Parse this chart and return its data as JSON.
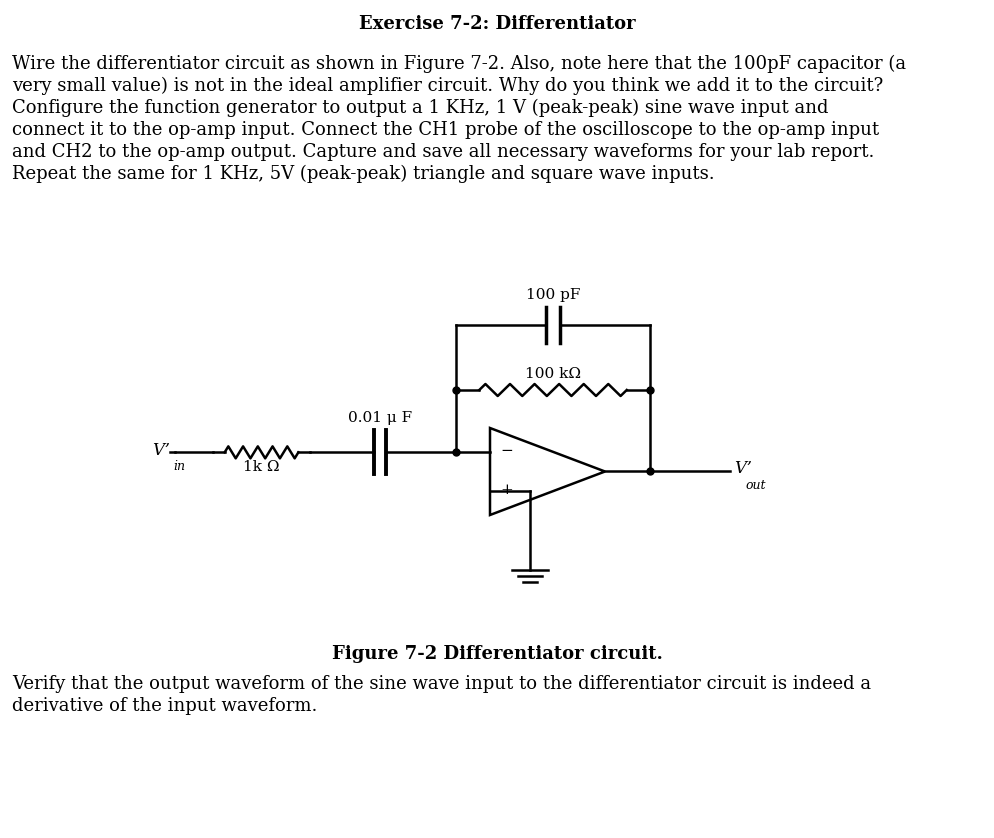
{
  "title": "Exercise 7-2: Differentiator",
  "para1_lines": [
    "Wire the differentiator circuit as shown in Figure 7-2. Also, note here that the 100pF capacitor (a",
    "very small value) is not in the ideal amplifier circuit. Why do you think we add it to the circuit?",
    "Configure the function generator to output a 1 KHz, 1 V (peak-peak) sine wave input and",
    "connect it to the op-amp input. Connect the CH1 probe of the oscilloscope to the op-amp input",
    "and CH2 to the op-amp output. Capture and save all necessary waveforms for your lab report.",
    "Repeat the same for 1 KHz, 5V (peak-peak) triangle and square wave inputs."
  ],
  "figure_caption": "Figure 7-2 Differentiator circuit.",
  "para2_lines": [
    "Verify that the output waveform of the sine wave input to the differentiator circuit is indeed a",
    "derivative of the input waveform."
  ],
  "label_100pF": "100 pF",
  "label_100k": "100 kΩ",
  "label_001uF": "0.01 μ F",
  "label_1k": "1k Ω",
  "label_vin": "V’",
  "label_vin_sub": "in",
  "label_vout": "V’",
  "label_vout_sub": "out",
  "label_minus": "−",
  "label_plus": "+",
  "bg_color": "#ffffff",
  "text_color": "#000000",
  "line_color": "#000000",
  "font_size_title": 13,
  "font_size_body": 13,
  "font_size_caption": 13,
  "font_size_labels": 11
}
